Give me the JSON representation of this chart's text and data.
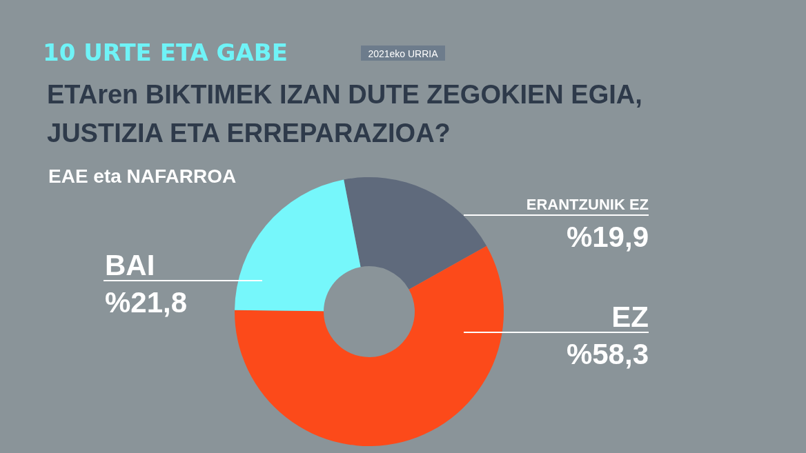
{
  "chart_data": {
    "type": "donut",
    "title": "ETAren BIKTIMEK IZAN DUTE ZEGOKIEN EGIA,\nJUSTIZIA ETA ERREPARAZIOA?",
    "subtitle": "EAE eta NAFARROA",
    "annotations": [
      "10 URTE ETA GABE",
      "2021eko URRIA"
    ],
    "categories": [
      "ERANTZUNIK EZ",
      "EZ",
      "BAI"
    ],
    "values": [
      19.9,
      58.3,
      21.8
    ],
    "value_labels": [
      "%19,9",
      "%58,3",
      "%21,8"
    ],
    "colors": [
      "#5f6a7c",
      "#fc4a1a",
      "#76f7fb"
    ],
    "legend": false
  }
}
